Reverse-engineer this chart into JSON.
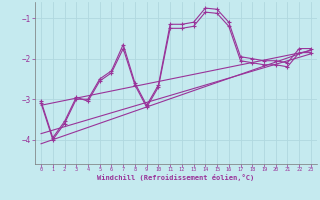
{
  "xlabel": "Windchill (Refroidissement éolien,°C)",
  "background_color": "#c5eaef",
  "line_color": "#993399",
  "grid_color": "#b0d8df",
  "xlim": [
    -0.5,
    23.5
  ],
  "ylim": [
    -4.6,
    -0.6
  ],
  "yticks": [
    -4,
    -3,
    -2,
    -1
  ],
  "xticks": [
    0,
    1,
    2,
    3,
    4,
    5,
    6,
    7,
    8,
    9,
    10,
    11,
    12,
    13,
    14,
    15,
    16,
    17,
    18,
    19,
    20,
    21,
    22,
    23
  ],
  "series1_x": [
    0,
    1,
    2,
    3,
    4,
    5,
    6,
    7,
    8,
    9,
    10,
    11,
    12,
    13,
    14,
    15,
    16,
    17,
    18,
    19,
    20,
    21,
    22,
    23
  ],
  "series1_y": [
    -3.1,
    -4.0,
    -3.6,
    -3.0,
    -3.0,
    -2.5,
    -2.3,
    -1.65,
    -2.6,
    -3.15,
    -2.65,
    -1.15,
    -1.15,
    -1.1,
    -0.75,
    -0.78,
    -1.1,
    -1.95,
    -2.0,
    -2.05,
    -2.05,
    -2.1,
    -1.75,
    -1.75
  ],
  "series2_x": [
    0,
    1,
    2,
    3,
    4,
    5,
    6,
    7,
    8,
    9,
    10,
    11,
    12,
    13,
    14,
    15,
    16,
    17,
    18,
    19,
    20,
    21,
    22,
    23
  ],
  "series2_y": [
    -3.05,
    -3.95,
    -3.55,
    -2.95,
    -3.05,
    -2.55,
    -2.35,
    -1.75,
    -2.65,
    -3.2,
    -2.7,
    -1.25,
    -1.25,
    -1.2,
    -0.85,
    -0.88,
    -1.2,
    -2.05,
    -2.1,
    -2.15,
    -2.15,
    -2.2,
    -1.85,
    -1.85
  ],
  "line3_x": [
    0,
    23
  ],
  "line3_y": [
    -3.15,
    -1.8
  ],
  "line4_x": [
    0,
    23
  ],
  "line4_y": [
    -3.85,
    -1.88
  ],
  "line5_x": [
    0,
    23
  ],
  "line5_y": [
    -4.1,
    -1.78
  ]
}
